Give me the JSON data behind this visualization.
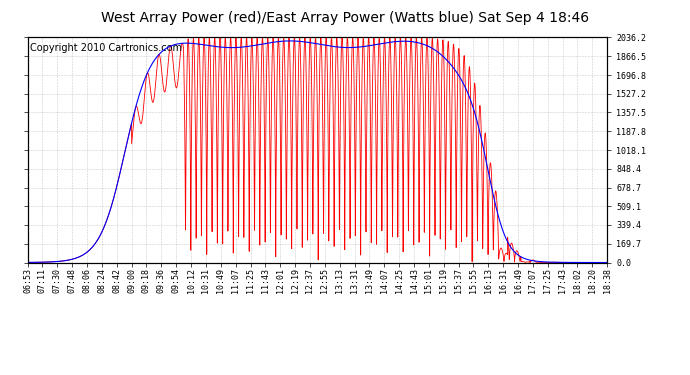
{
  "title": "West Array Power (red)/East Array Power (Watts blue) Sat Sep 4 18:46",
  "copyright": "Copyright 2010 Cartronics.com",
  "ylabel_right_ticks": [
    0.0,
    169.7,
    339.4,
    509.1,
    678.7,
    848.4,
    1018.1,
    1187.8,
    1357.5,
    1527.2,
    1696.8,
    1866.5,
    2036.2
  ],
  "ymax": 2036.2,
  "ymin": 0.0,
  "x_tick_labels": [
    "06:53",
    "07:11",
    "07:30",
    "07:48",
    "08:06",
    "08:24",
    "08:42",
    "09:00",
    "09:18",
    "09:36",
    "09:54",
    "10:12",
    "10:31",
    "10:49",
    "11:07",
    "11:25",
    "11:43",
    "12:01",
    "12:19",
    "12:37",
    "12:55",
    "13:13",
    "13:31",
    "13:49",
    "14:07",
    "14:25",
    "14:43",
    "15:01",
    "15:19",
    "15:37",
    "15:55",
    "16:13",
    "16:31",
    "16:49",
    "17:07",
    "17:25",
    "17:43",
    "18:02",
    "18:20",
    "18:38"
  ],
  "bg_color": "#ffffff",
  "grid_color": "#aaaaaa",
  "red_line_color": "#ff0000",
  "blue_line_color": "#0000ff",
  "title_fontsize": 10,
  "copyright_fontsize": 7,
  "tick_fontsize": 6,
  "figsize": [
    6.9,
    3.75
  ],
  "dpi": 100
}
